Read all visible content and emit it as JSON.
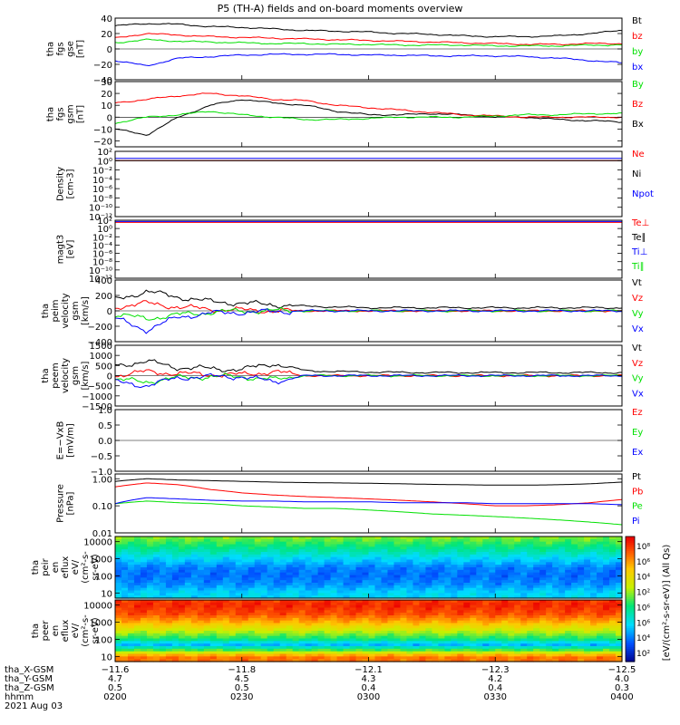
{
  "title": "P5 (TH-A) fields and on-board moments overview",
  "date": "2021 Aug 03",
  "colors": {
    "black": "#000000",
    "red": "#ff0000",
    "green": "#00e000",
    "blue": "#0000ff",
    "violet": "#7a00ff",
    "orange": "#ff8c00"
  },
  "chart_data": [
    {
      "type": "line",
      "id": "fgs_gse",
      "ylabel": [
        "tha",
        "fgs",
        "gse",
        "[nT]"
      ],
      "ylim": [
        -40,
        40
      ],
      "yticks": [
        "40",
        "20",
        "0",
        "−20",
        "−40"
      ],
      "yticks_v": [
        40,
        20,
        0,
        -20,
        -40
      ],
      "legend": [
        "Bt",
        "bz",
        "by",
        "bx"
      ],
      "legend_colors": [
        "#000000",
        "#ff0000",
        "#00e000",
        "#0000ff"
      ],
      "series": [
        {
          "name": "Bt",
          "color": "#000000",
          "values": [
            30,
            33,
            32,
            29,
            28,
            26,
            24,
            23,
            22,
            20,
            19,
            17,
            16,
            16,
            17,
            20,
            24
          ]
        },
        {
          "name": "bz",
          "color": "#ff0000",
          "values": [
            14,
            20,
            18,
            16,
            15,
            14,
            13,
            12,
            11,
            10,
            9,
            8,
            7,
            6,
            6,
            7,
            7
          ]
        },
        {
          "name": "by",
          "color": "#00e000",
          "values": [
            8,
            12,
            10,
            9,
            8,
            7,
            7,
            6,
            6,
            5,
            5,
            5,
            4,
            4,
            4,
            5,
            5
          ]
        },
        {
          "name": "bx",
          "color": "#0000ff",
          "values": [
            -15,
            -22,
            -12,
            -10,
            -8,
            -7,
            -7,
            -7,
            -8,
            -8,
            -9,
            -9,
            -9,
            -10,
            -12,
            -15,
            -18
          ]
        }
      ]
    },
    {
      "type": "line",
      "id": "fgs_gsm",
      "ylabel": [
        "tha",
        "fgs",
        "gsm",
        "[nT]"
      ],
      "ylim": [
        -25,
        30
      ],
      "yticks": [
        "30",
        "20",
        "10",
        "0",
        "−10",
        "−20"
      ],
      "yticks_v": [
        30,
        20,
        10,
        0,
        -10,
        -20
      ],
      "legend": [
        "By",
        "Bz",
        "Bx"
      ],
      "legend_colors": [
        "#00e000",
        "#ff0000",
        "#000000"
      ],
      "series": [
        {
          "name": "Bx",
          "color": "#000000",
          "values": [
            -10,
            -15,
            0,
            10,
            15,
            12,
            10,
            5,
            2,
            2,
            3,
            2,
            0,
            0,
            -2,
            -3,
            -4
          ]
        },
        {
          "name": "Bz",
          "color": "#ff0000",
          "values": [
            12,
            15,
            18,
            20,
            18,
            15,
            14,
            10,
            8,
            6,
            4,
            2,
            1,
            0,
            0,
            0,
            0
          ]
        },
        {
          "name": "By",
          "color": "#00e000",
          "values": [
            -5,
            0,
            2,
            5,
            2,
            0,
            -2,
            -2,
            -1,
            0,
            0,
            0,
            1,
            2,
            2,
            3,
            3
          ]
        }
      ]
    },
    {
      "type": "line",
      "id": "density",
      "ylabel": [
        "Density",
        "[cm-3]"
      ],
      "log": true,
      "ylim": [
        1e-12,
        100
      ],
      "yticks": [
        "10²",
        "10⁰",
        "10⁻²",
        "10⁻⁴",
        "10⁻⁶",
        "10⁻⁸",
        "10⁻¹⁰",
        "10⁻¹²"
      ],
      "yticks_v": [
        100,
        1,
        0.01,
        0.0001,
        1e-06,
        1e-08,
        1e-10,
        1e-12
      ],
      "legend": [
        "Ne",
        "Ni",
        "Npot"
      ],
      "legend_colors": [
        "#ff0000",
        "#000000",
        "#0000ff"
      ],
      "series": [
        {
          "name": "Ne",
          "color": "#ff0000",
          "values": [
            1,
            1,
            1,
            1,
            1,
            1,
            1,
            1,
            1,
            1,
            1,
            1,
            1,
            1,
            1,
            1,
            1
          ]
        },
        {
          "name": "Ni",
          "color": "#000000",
          "values": [
            1,
            1,
            1,
            1,
            1,
            1,
            1,
            1,
            1,
            1,
            1,
            1,
            1,
            1,
            1,
            1,
            1
          ]
        },
        {
          "name": "Npot",
          "color": "#0000ff",
          "values": [
            3,
            3,
            3,
            3,
            3,
            3,
            3,
            3,
            3,
            3,
            3,
            3,
            3,
            3,
            3,
            3,
            3
          ]
        }
      ]
    },
    {
      "type": "line",
      "id": "temperature",
      "ylabel": [
        "magt3",
        "[eV]"
      ],
      "log": true,
      "ylim": [
        1e-12,
        100
      ],
      "yticks": [
        "10²",
        "10⁰",
        "10⁻²",
        "10⁻⁴",
        "10⁻⁶",
        "10⁻⁸",
        "10⁻¹⁰",
        "10⁻¹²"
      ],
      "yticks_v": [
        100,
        1,
        0.01,
        0.0001,
        1e-06,
        1e-08,
        1e-10,
        1e-12
      ],
      "legend": [
        "Te⊥",
        "Te∥",
        "Ti⊥",
        "Ti∥"
      ],
      "legend_colors": [
        "#ff0000",
        "#000000",
        "#0000ff",
        "#00e000"
      ],
      "series": [
        {
          "name": "Te⊥",
          "color": "#ff0000",
          "values": [
            30,
            30,
            30,
            30,
            30,
            30,
            30,
            30,
            30,
            30,
            30,
            30,
            30,
            30,
            30,
            30,
            30
          ]
        },
        {
          "name": "Ti⊥",
          "color": "#0000ff",
          "values": [
            50,
            50,
            50,
            50,
            50,
            50,
            50,
            50,
            50,
            50,
            50,
            50,
            50,
            50,
            50,
            50,
            50
          ]
        }
      ]
    },
    {
      "type": "line",
      "id": "peim_velocity",
      "ylabel": [
        "tha",
        "peim",
        "velocity",
        "gsm",
        "[km/s]"
      ],
      "ylim": [
        -400,
        400
      ],
      "yticks": [
        "400",
        "200",
        "0",
        "−200",
        "−400"
      ],
      "yticks_v": [
        400,
        200,
        0,
        -200,
        -400
      ],
      "legend": [
        "Vt",
        "Vz",
        "Vy",
        "Vx"
      ],
      "legend_colors": [
        "#000000",
        "#ff0000",
        "#00e000",
        "#0000ff"
      ],
      "series": [
        {
          "name": "Vt",
          "color": "#000000",
          "values": [
            150,
            250,
            180,
            120,
            100,
            80,
            60,
            50,
            40,
            40,
            40,
            40,
            40,
            40,
            40,
            40,
            40
          ]
        },
        {
          "name": "Vz",
          "color": "#ff0000",
          "values": [
            50,
            100,
            50,
            20,
            10,
            0,
            0,
            0,
            0,
            0,
            0,
            0,
            0,
            0,
            0,
            0,
            0
          ]
        },
        {
          "name": "Vy",
          "color": "#00e000",
          "values": [
            -50,
            -100,
            -50,
            -20,
            0,
            0,
            0,
            0,
            0,
            0,
            0,
            0,
            0,
            0,
            0,
            0,
            0
          ]
        },
        {
          "name": "Vx",
          "color": "#0000ff",
          "values": [
            -100,
            -250,
            -80,
            -30,
            -20,
            -10,
            0,
            0,
            0,
            0,
            0,
            0,
            0,
            0,
            0,
            0,
            0
          ]
        }
      ]
    },
    {
      "type": "line",
      "id": "peem_velocity",
      "ylabel": [
        "tha",
        "peem",
        "velocity",
        "gsm",
        "[km/s]"
      ],
      "ylim": [
        -1500,
        1500
      ],
      "yticks": [
        "1500",
        "1000",
        "500",
        "0",
        "−500",
        "−1000",
        "−1500"
      ],
      "yticks_v": [
        1500,
        1000,
        500,
        0,
        -500,
        -1000,
        -1500
      ],
      "legend": [
        "Vt",
        "Vz",
        "Vy",
        "Vx"
      ],
      "legend_colors": [
        "#000000",
        "#ff0000",
        "#00e000",
        "#0000ff"
      ],
      "series": [
        {
          "name": "Vt",
          "color": "#000000",
          "values": [
            500,
            700,
            400,
            350,
            300,
            600,
            250,
            200,
            180,
            160,
            150,
            150,
            150,
            150,
            150,
            150,
            150
          ]
        },
        {
          "name": "Vz",
          "color": "#ff0000",
          "values": [
            0,
            200,
            100,
            50,
            50,
            200,
            0,
            0,
            0,
            0,
            0,
            0,
            0,
            0,
            0,
            0,
            0
          ]
        },
        {
          "name": "Vy",
          "color": "#00e000",
          "values": [
            -200,
            -300,
            -100,
            -50,
            -50,
            -200,
            0,
            0,
            0,
            0,
            0,
            0,
            0,
            0,
            0,
            0,
            0
          ]
        },
        {
          "name": "Vx",
          "color": "#0000ff",
          "values": [
            -300,
            -500,
            -100,
            -50,
            -50,
            -300,
            0,
            0,
            0,
            0,
            0,
            0,
            0,
            0,
            0,
            0,
            0
          ]
        }
      ]
    },
    {
      "type": "line",
      "id": "efield",
      "ylabel": [
        "E=−VxB",
        "[mV/m]"
      ],
      "ylim": [
        -1,
        1
      ],
      "yticks": [
        "1.0",
        "0.5",
        "0.0",
        "−0.5",
        "−1.0"
      ],
      "yticks_v": [
        1,
        0.5,
        0,
        -0.5,
        -1
      ],
      "legend": [
        "Ez",
        "Ey",
        "Ex"
      ],
      "legend_colors": [
        "#ff0000",
        "#00e000",
        "#0000ff"
      ],
      "series": []
    },
    {
      "type": "line",
      "id": "pressure",
      "ylabel": [
        "Pressure",
        "[nPa]"
      ],
      "log": true,
      "ylim": [
        0.01,
        1.5
      ],
      "yticks": [
        "1.00",
        "0.10",
        "0.01"
      ],
      "yticks_v": [
        1,
        0.1,
        0.01
      ],
      "legend": [
        "Pt",
        "Pb",
        "Pe",
        "Pi"
      ],
      "legend_colors": [
        "#000000",
        "#ff0000",
        "#00e000",
        "#0000ff"
      ],
      "series": [
        {
          "name": "Pt",
          "color": "#000000",
          "values": [
            0.8,
            1.0,
            0.9,
            0.85,
            0.8,
            0.75,
            0.72,
            0.7,
            0.68,
            0.65,
            0.62,
            0.6,
            0.58,
            0.58,
            0.6,
            0.65,
            0.75
          ]
        },
        {
          "name": "Pb",
          "color": "#ff0000",
          "values": [
            0.5,
            0.7,
            0.6,
            0.4,
            0.3,
            0.25,
            0.22,
            0.2,
            0.18,
            0.16,
            0.14,
            0.12,
            0.1,
            0.1,
            0.11,
            0.13,
            0.17
          ]
        },
        {
          "name": "Pe",
          "color": "#00e000",
          "values": [
            0.12,
            0.15,
            0.13,
            0.12,
            0.1,
            0.09,
            0.08,
            0.08,
            0.07,
            0.06,
            0.05,
            0.045,
            0.04,
            0.035,
            0.03,
            0.025,
            0.02
          ]
        },
        {
          "name": "Pi",
          "color": "#0000ff",
          "values": [
            0.12,
            0.2,
            0.18,
            0.16,
            0.15,
            0.15,
            0.14,
            0.14,
            0.14,
            0.13,
            0.13,
            0.13,
            0.12,
            0.12,
            0.12,
            0.12,
            0.11
          ]
        }
      ]
    },
    {
      "type": "heatmap",
      "id": "peir_eflux",
      "ylabel": [
        "tha",
        "peir",
        "en",
        "eflux",
        "eV/",
        "(cm²-s-",
        "sr-eV)"
      ],
      "log": true,
      "ylim": [
        5,
        20000
      ],
      "yticks": [
        "10000",
        "1000",
        "100",
        "10"
      ],
      "yticks_v": [
        10000,
        1000,
        100,
        10
      ],
      "energy_profile": [
        [
          20000,
          0.55
        ],
        [
          10000,
          0.5
        ],
        [
          3000,
          0.4
        ],
        [
          1000,
          0.3
        ],
        [
          300,
          0.2
        ],
        [
          100,
          0.18
        ],
        [
          30,
          0.22
        ],
        [
          10,
          0.3
        ]
      ]
    },
    {
      "type": "heatmap",
      "id": "peer_eflux",
      "ylabel": [
        "tha",
        "peer",
        "en",
        "eflux",
        "eV/",
        "(cm²-s-",
        "sr-eV)"
      ],
      "log": true,
      "ylim": [
        5,
        20000
      ],
      "yticks": [
        "10000",
        "1000",
        "100",
        "10"
      ],
      "yticks_v": [
        10000,
        1000,
        100,
        10
      ],
      "energy_profile": [
        [
          20000,
          0.92
        ],
        [
          10000,
          0.95
        ],
        [
          3000,
          0.9
        ],
        [
          1000,
          0.78
        ],
        [
          300,
          0.6
        ],
        [
          100,
          0.45
        ],
        [
          50,
          0.25
        ],
        [
          20,
          0.55
        ],
        [
          10,
          0.85
        ]
      ]
    }
  ],
  "x_axis": {
    "row_labels": [
      "tha_X-GSM",
      "tha_Y-GSM",
      "tha_Z-GSM",
      "hhmm",
      "2021 Aug 03"
    ],
    "ticks": [
      {
        "frac": 0.0,
        "x_gsm": "−11.6",
        "y_gsm": "4.7",
        "z_gsm": "0.5",
        "hhmm": "0200"
      },
      {
        "frac": 0.25,
        "x_gsm": "−11.8",
        "y_gsm": "4.5",
        "z_gsm": "0.5",
        "hhmm": "0230"
      },
      {
        "frac": 0.5,
        "x_gsm": "−12.1",
        "y_gsm": "4.3",
        "z_gsm": "0.4",
        "hhmm": "0300"
      },
      {
        "frac": 0.75,
        "x_gsm": "−12.3",
        "y_gsm": "4.2",
        "z_gsm": "0.4",
        "hhmm": "0330"
      },
      {
        "frac": 1.0,
        "x_gsm": "−12.5",
        "y_gsm": "4.0",
        "z_gsm": "0.3",
        "hhmm": "0400"
      }
    ]
  },
  "colorbar": {
    "label": "[eV/(cm²-s-sr-eV)] (All Qs)",
    "ticks": [
      "10⁸",
      "10⁶",
      "10⁴",
      "10²",
      "10⁶",
      "10⁶",
      "10⁴",
      "10²"
    ]
  }
}
